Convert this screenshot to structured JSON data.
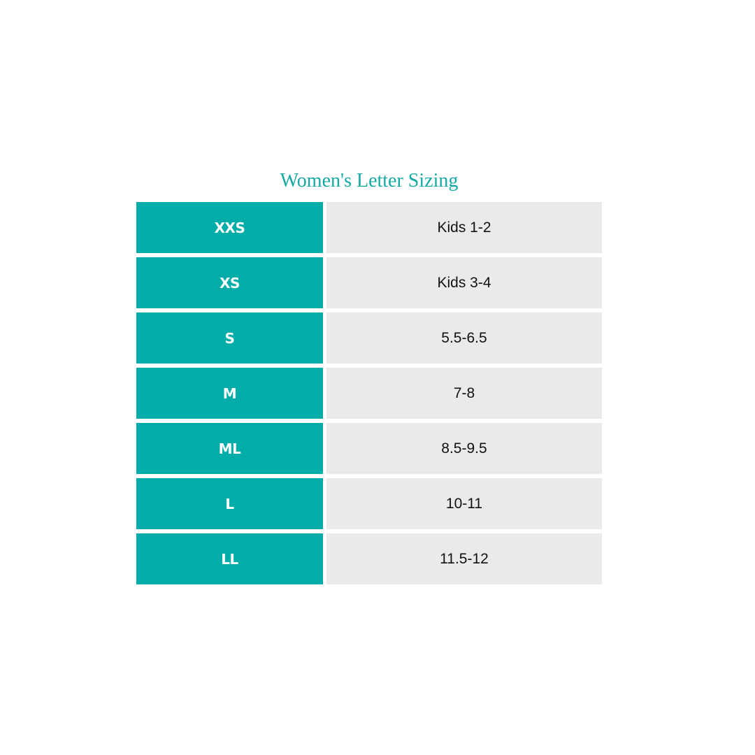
{
  "title": "Women's Letter Sizing",
  "colors": {
    "accent": "#00ada9",
    "value_bg": "#eaeaea",
    "title": "#14aaa3"
  },
  "rows": [
    {
      "size": "XXS",
      "value": "Kids 1-2"
    },
    {
      "size": "XS",
      "value": "Kids 3-4"
    },
    {
      "size": "S",
      "value": "5.5-6.5"
    },
    {
      "size": "M",
      "value": "7-8"
    },
    {
      "size": "ML",
      "value": "8.5-9.5"
    },
    {
      "size": "L",
      "value": "10-11"
    },
    {
      "size": "LL",
      "value": "11.5-12"
    }
  ]
}
